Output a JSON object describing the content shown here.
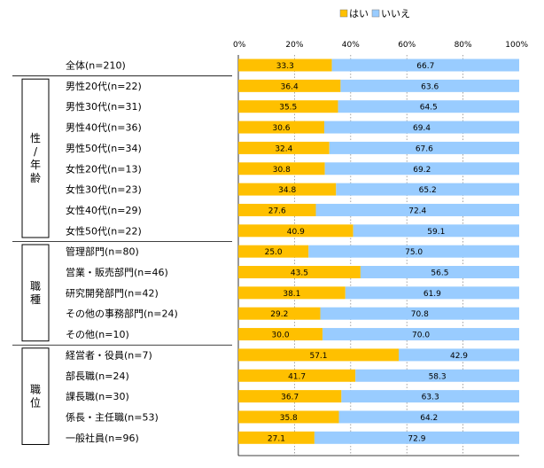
{
  "chart_data": {
    "type": "bar",
    "orientation": "horizontal",
    "stacked": true,
    "xlim": [
      0,
      100
    ],
    "x_ticks": [
      "0%",
      "20%",
      "40%",
      "60%",
      "80%",
      "100%"
    ],
    "grid": true,
    "legend_position": "top-right",
    "series": [
      {
        "name": "はい",
        "color": "#FFC000",
        "values": [
          33.3,
          36.4,
          35.5,
          30.6,
          32.4,
          30.8,
          34.8,
          27.6,
          40.9,
          25.0,
          43.5,
          38.1,
          29.2,
          30.0,
          57.1,
          41.7,
          36.7,
          35.8,
          27.1
        ]
      },
      {
        "name": "いいえ",
        "color": "#99CCFF",
        "values": [
          66.7,
          63.6,
          64.5,
          69.4,
          67.6,
          69.2,
          65.2,
          72.4,
          59.1,
          75.0,
          56.5,
          61.9,
          70.8,
          70.0,
          42.9,
          58.3,
          63.3,
          64.2,
          72.9
        ]
      }
    ],
    "value_labels": {
      "yes": [
        "33.3",
        "36.4",
        "35.5",
        "30.6",
        "32.4",
        "30.8",
        "34.8",
        "27.6",
        "40.9",
        "25.0",
        "43.5",
        "38.1",
        "29.2",
        "30.0",
        "57.1",
        "41.7",
        "36.7",
        "35.8",
        "27.1"
      ],
      "no": [
        "66.7",
        "63.6",
        "64.5",
        "69.4",
        "67.6",
        "69.2",
        "65.2",
        "72.4",
        "59.1",
        "75.0",
        "56.5",
        "61.9",
        "70.8",
        "70.0",
        "42.9",
        "58.3",
        "63.3",
        "64.2",
        "72.9"
      ]
    },
    "categories": [
      "全体(n=210)",
      "男性20代(n=22)",
      "男性30代(n=31)",
      "男性40代(n=36)",
      "男性50代(n=34)",
      "女性20代(n=13)",
      "女性30代(n=23)",
      "女性40代(n=29)",
      "女性50代(n=22)",
      "管理部門(n=80)",
      "営業・販売部門(n=46)",
      "研究開発部門(n=42)",
      "その他の事務部門(n=24)",
      "その他(n=10)",
      "経営者・役員(n=7)",
      "部長職(n=24)",
      "課長職(n=30)",
      "係長・主任職(n=53)",
      "一般社員(n=96)"
    ],
    "groups": [
      {
        "label": [
          "性",
          "/",
          "年",
          "齢"
        ],
        "start": 1,
        "end": 8
      },
      {
        "label": [
          "職",
          "種"
        ],
        "start": 9,
        "end": 13
      },
      {
        "label": [
          "職",
          "位"
        ],
        "start": 14,
        "end": 18
      }
    ]
  }
}
